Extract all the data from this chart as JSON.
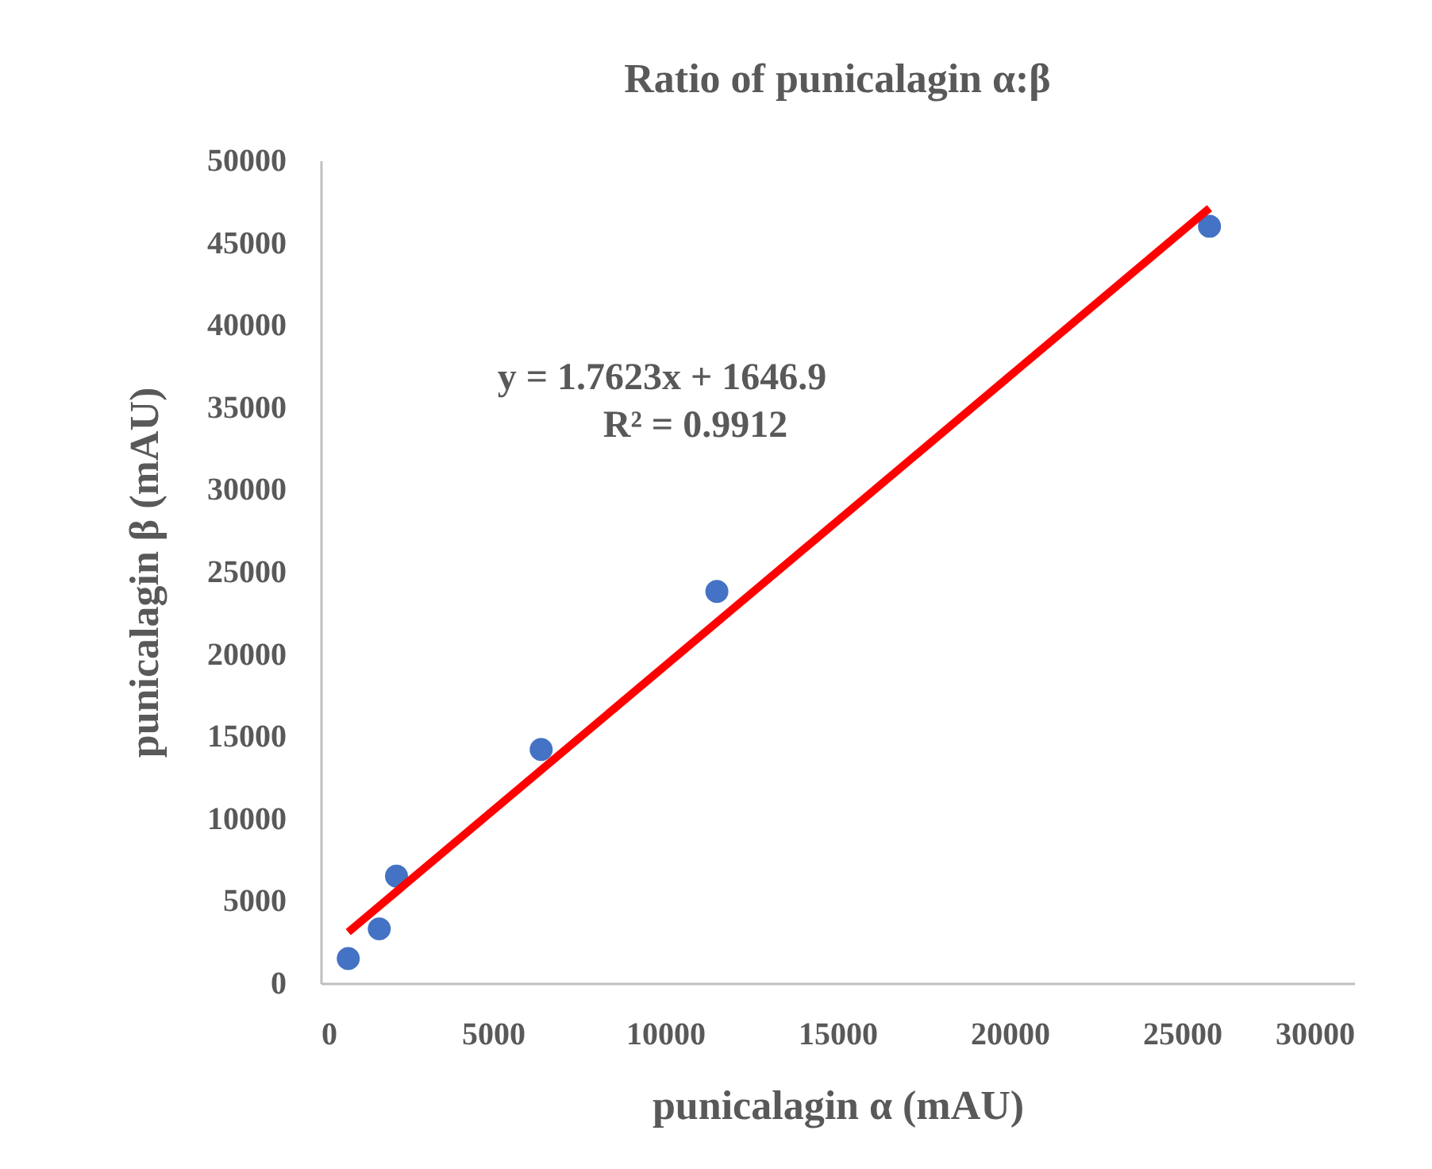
{
  "chart_data": {
    "type": "scatter",
    "title": "Ratio of punicalagin α:β",
    "xlabel": "punicalagin α (mAU)",
    "ylabel": "punicalagin β (mAU)",
    "xlim": [
      0,
      30000
    ],
    "xticks": [
      0,
      5000,
      10000,
      15000,
      20000,
      25000,
      30000
    ],
    "ylim": [
      0,
      50000
    ],
    "yticks": [
      0,
      5000,
      10000,
      15000,
      20000,
      25000,
      30000,
      35000,
      40000,
      45000,
      50000
    ],
    "grid": false,
    "annotations": [
      "y = 1.7623x + 1646.9",
      "R² = 0.9912"
    ],
    "series": [
      {
        "color": "#4472c4",
        "marker": "circle",
        "x": [
          800,
          1700,
          2200,
          6400,
          11500,
          25800
        ],
        "values": [
          1500,
          3300,
          6500,
          14200,
          23800,
          46000
        ]
      },
      {
        "type": "line",
        "color": "#ff0000",
        "line_style": "solid",
        "x": [
          800,
          25800
        ],
        "values": [
          3100,
          47100
        ]
      }
    ]
  }
}
